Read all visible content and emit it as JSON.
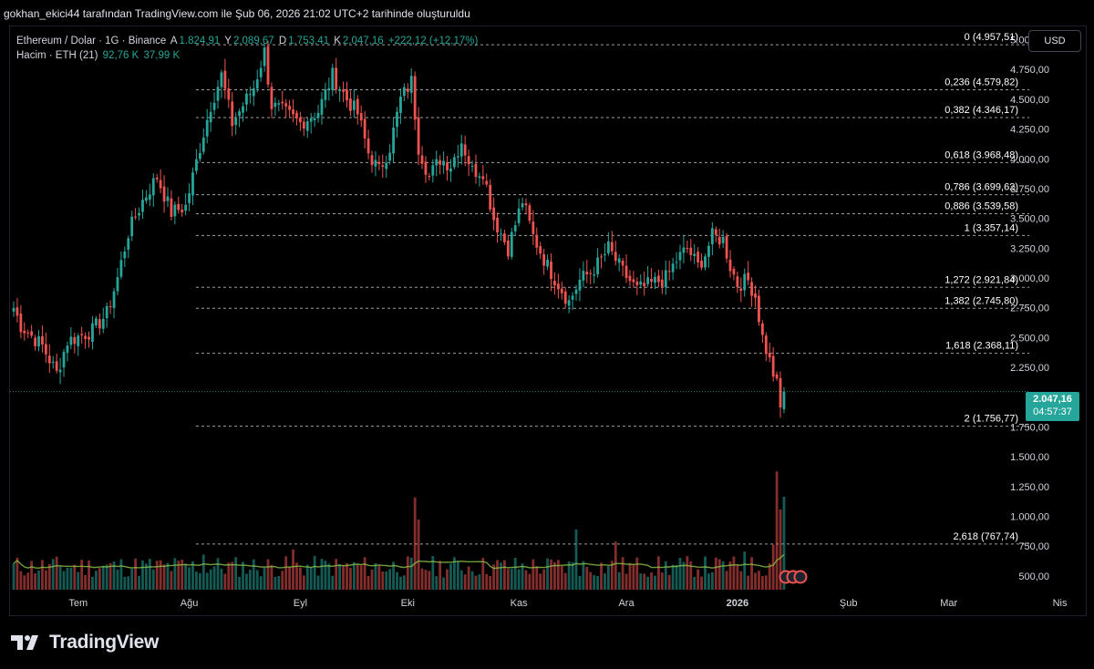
{
  "header": {
    "attribution": "gokhan_ekici44 tarafından TradingView.com ile Şub 06, 2026 21:02 UTC+2 tarihinde oluşturuldu"
  },
  "legend": {
    "symbol": "Ethereum / Dolar · 1G · Binance",
    "open_label": "A",
    "open_value": "1.824,91",
    "high_label": "Y",
    "high_value": "2.089,67",
    "low_label": "D",
    "low_value": "1.753,41",
    "close_label": "K",
    "close_value": "2.047,16",
    "change": "+222,12 (+12,17%)",
    "volume_label": "Hacim · ETH (21)",
    "volume_value": "92,76 K",
    "volume_ma": "37,99 K"
  },
  "toolbar": {
    "currency": "USD"
  },
  "price_tag": {
    "price": "2.047,16",
    "countdown": "04:57:37"
  },
  "logo": {
    "text": "TradingView"
  },
  "colors": {
    "up": "#26a69a",
    "down": "#ef5350",
    "background": "#000000",
    "volume_ma": "#8bc34a"
  },
  "chart_data": {
    "type": "candlestick",
    "symbol": "Ethereum / Dolar",
    "interval": "1G",
    "exchange": "Binance",
    "ylim": [
      400,
      5050
    ],
    "y_ticks": [
      {
        "v": 5000,
        "label": "5.000,00"
      },
      {
        "v": 4750,
        "label": "4.750,00"
      },
      {
        "v": 4500,
        "label": "4.500,00"
      },
      {
        "v": 4250,
        "label": "4.250,00"
      },
      {
        "v": 4000,
        "label": "4.000,00"
      },
      {
        "v": 3750,
        "label": "3.750,00"
      },
      {
        "v": 3500,
        "label": "3.500,00"
      },
      {
        "v": 3250,
        "label": "3.250,00"
      },
      {
        "v": 3000,
        "label": "3.000,00"
      },
      {
        "v": 2750,
        "label": "2.750,00"
      },
      {
        "v": 2500,
        "label": "2.500,00"
      },
      {
        "v": 2250,
        "label": "2.250,00"
      },
      {
        "v": 1750,
        "label": "1.750,00"
      },
      {
        "v": 1500,
        "label": "1.500,00"
      },
      {
        "v": 1250,
        "label": "1.250,00"
      },
      {
        "v": 1000,
        "label": "1.000,00"
      },
      {
        "v": 750,
        "label": "750,00"
      },
      {
        "v": 500,
        "label": "500,00"
      }
    ],
    "x_ticks": [
      {
        "day": 18,
        "label": "Tem",
        "bold": false
      },
      {
        "day": 49,
        "label": "Ağu",
        "bold": false
      },
      {
        "day": 80,
        "label": "Eyl",
        "bold": false
      },
      {
        "day": 110,
        "label": "Eki",
        "bold": false
      },
      {
        "day": 141,
        "label": "Kas",
        "bold": false
      },
      {
        "day": 171,
        "label": "Ara",
        "bold": false
      },
      {
        "day": 202,
        "label": "2026",
        "bold": true
      },
      {
        "day": 233,
        "label": "Şub",
        "bold": false
      },
      {
        "day": 261,
        "label": "Mar",
        "bold": false
      },
      {
        "day": 292,
        "label": "Nis",
        "bold": false
      }
    ],
    "fibonacci": [
      {
        "level": "0",
        "price": 4957.51,
        "label": "0 (4.957,51)"
      },
      {
        "level": "0.236",
        "price": 4579.82,
        "label": "0,236 (4.579,82)"
      },
      {
        "level": "0.382",
        "price": 4346.17,
        "label": "0,382 (4.346,17)"
      },
      {
        "level": "0.618",
        "price": 3968.48,
        "label": "0,618 (3.968,48)"
      },
      {
        "level": "0.786",
        "price": 3699.62,
        "label": "0,786 (3.699,62)"
      },
      {
        "level": "0.886",
        "price": 3539.58,
        "label": "0,886 (3.539,58)"
      },
      {
        "level": "1",
        "price": 3357.14,
        "label": "1 (3.357,14)"
      },
      {
        "level": "1.272",
        "price": 2921.84,
        "label": "1,272 (2.921,84)"
      },
      {
        "level": "1.382",
        "price": 2745.8,
        "label": "1,382 (2.745,80)"
      },
      {
        "level": "1.618",
        "price": 2368.11,
        "label": "1,618 (2.368,11)"
      },
      {
        "level": "2",
        "price": 1756.77,
        "label": "2 (1.756,77)"
      },
      {
        "level": "2.618",
        "price": 767.74,
        "label": "2,618 (767,74)"
      }
    ],
    "last_close": 2047.16,
    "close_anchors": [
      [
        0,
        2750
      ],
      [
        2,
        2600
      ],
      [
        8,
        2430
      ],
      [
        12,
        2200
      ],
      [
        15,
        2470
      ],
      [
        22,
        2560
      ],
      [
        26,
        2700
      ],
      [
        29,
        3000
      ],
      [
        32,
        3380
      ],
      [
        36,
        3650
      ],
      [
        40,
        3850
      ],
      [
        44,
        3550
      ],
      [
        48,
        3600
      ],
      [
        52,
        4100
      ],
      [
        55,
        4450
      ],
      [
        58,
        4700
      ],
      [
        61,
        4300
      ],
      [
        64,
        4450
      ],
      [
        67,
        4600
      ],
      [
        70,
        4900
      ],
      [
        72,
        4450
      ],
      [
        75,
        4400
      ],
      [
        80,
        4300
      ],
      [
        85,
        4400
      ],
      [
        89,
        4700
      ],
      [
        93,
        4500
      ],
      [
        96,
        4380
      ],
      [
        99,
        4050
      ],
      [
        102,
        3900
      ],
      [
        105,
        4100
      ],
      [
        108,
        4500
      ],
      [
        111,
        4650
      ],
      [
        113,
        4100
      ],
      [
        116,
        3850
      ],
      [
        119,
        4000
      ],
      [
        122,
        3950
      ],
      [
        125,
        4150
      ],
      [
        128,
        3900
      ],
      [
        131,
        3900
      ],
      [
        134,
        3500
      ],
      [
        138,
        3250
      ],
      [
        142,
        3650
      ],
      [
        145,
        3350
      ],
      [
        149,
        3100
      ],
      [
        152,
        2950
      ],
      [
        155,
        2800
      ],
      [
        158,
        2980
      ],
      [
        161,
        3050
      ],
      [
        164,
        3150
      ],
      [
        166,
        3250
      ],
      [
        168,
        3150
      ],
      [
        170,
        3050
      ],
      [
        174,
        2900
      ],
      [
        178,
        2950
      ],
      [
        182,
        3000
      ],
      [
        185,
        3150
      ],
      [
        188,
        3250
      ],
      [
        191,
        3100
      ],
      [
        193,
        3200
      ],
      [
        195,
        3350
      ],
      [
        198,
        3320
      ],
      [
        200,
        3100
      ],
      [
        202,
        2950
      ],
      [
        205,
        2980
      ],
      [
        207,
        2850
      ],
      [
        209,
        2500
      ],
      [
        211,
        2300
      ],
      [
        213,
        2100
      ],
      [
        214,
        1900
      ],
      [
        215,
        2047
      ]
    ],
    "volume": {
      "ylim": [
        0,
        175
      ],
      "ma_period": 21,
      "last_value": 92.76,
      "last_ma": 37.99,
      "spikes": [
        [
          53,
          35
        ],
        [
          78,
          40
        ],
        [
          112,
          92
        ],
        [
          113,
          70
        ],
        [
          157,
          60
        ],
        [
          168,
          48
        ],
        [
          204,
          38
        ],
        [
          212,
          45
        ],
        [
          213,
          118
        ],
        [
          214,
          80
        ],
        [
          215,
          93
        ]
      ]
    }
  }
}
